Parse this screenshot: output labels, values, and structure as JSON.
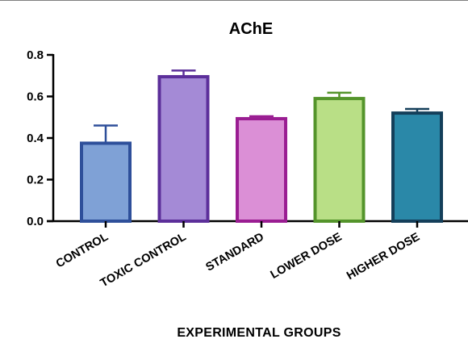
{
  "chart_data": {
    "type": "bar",
    "title": "AChE",
    "xlabel": "EXPERIMENTAL GROUPS",
    "ylabel": "",
    "ylim": [
      0,
      0.8
    ],
    "yticks": [
      "0.0",
      "0.2",
      "0.4",
      "0.6",
      "0.8"
    ],
    "categories": [
      "CONTROL",
      "TOXIC CONTROL",
      "STANDARD",
      "LOWER DOSE",
      "HIGHER DOSE"
    ],
    "values": [
      0.375,
      0.695,
      0.493,
      0.59,
      0.52
    ],
    "errors": [
      0.085,
      0.03,
      0.012,
      0.028,
      0.02
    ],
    "colors": {
      "fills": [
        "#7fa1d6",
        "#a48ad6",
        "#db8fd6",
        "#b9df86",
        "#2a88a8"
      ],
      "strokes": [
        "#2e4f9a",
        "#5c2f9a",
        "#9a1d92",
        "#54942b",
        "#143f5a"
      ]
    },
    "grid": false,
    "legend": "none"
  }
}
